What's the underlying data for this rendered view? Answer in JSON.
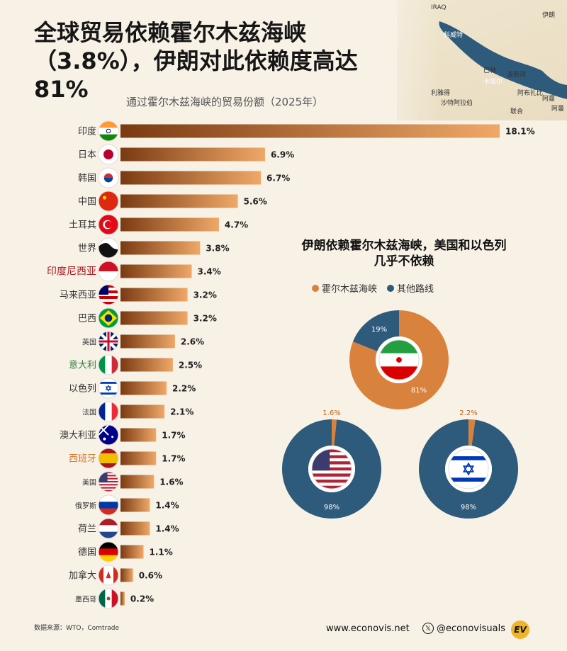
{
  "title": "全球贸易依赖霍尔木兹海峡（3.8%），伊朗对此依赖度高达81%",
  "map": {
    "labels": [
      "IRAQ",
      "伊朗",
      "科威特",
      "巴林",
      "波斯湾",
      "卡塔尔",
      "利雅得",
      "沙特阿拉伯",
      "阿布扎比",
      "阿曼",
      "联合",
      "阿曼"
    ]
  },
  "colors": {
    "bar_dark": "#7a3a12",
    "bar_light": "#f0a868",
    "strait": "#d9823d",
    "other": "#2e5a7c"
  },
  "chart_data": [
    {
      "type": "bar",
      "title": "通过霍尔木兹海峡的贸易份额（2025年）",
      "categories": [
        "印度",
        "日本",
        "韩国",
        "中国",
        "土耳其",
        "世界",
        "印度尼西亚",
        "马来西亚",
        "巴西",
        "英国",
        "意大利",
        "以色列",
        "法国",
        "澳大利亚",
        "西班牙",
        "美国",
        "俄罗斯",
        "荷兰",
        "德国",
        "加拿大",
        "墨西哥"
      ],
      "values": [
        18.1,
        6.9,
        6.7,
        5.6,
        4.7,
        3.8,
        3.4,
        3.2,
        3.2,
        2.6,
        2.5,
        2.2,
        2.1,
        1.7,
        1.7,
        1.6,
        1.4,
        1.4,
        1.1,
        0.6,
        0.2
      ],
      "labels": [
        "18.1%",
        "6.9%",
        "6.7%",
        "5.6%",
        "4.7%",
        "3.8%",
        "3.4%",
        "3.2%",
        "3.2%",
        "2.6%",
        "2.5%",
        "2.2%",
        "2.1%",
        "1.7%",
        "1.7%",
        "1.6%",
        "1.4%",
        "1.4%",
        "1.1%",
        "0.6%",
        "0.2%"
      ],
      "flags": [
        "india-flag-icon",
        "japan-flag-icon",
        "korea-flag-icon",
        "china-flag-icon",
        "turkey-flag-icon",
        "world-globe-icon",
        "indonesia-flag-icon",
        "malaysia-flag-icon",
        "brazil-flag-icon",
        "uk-flag-icon",
        "italy-flag-icon",
        "israel-flag-icon",
        "france-flag-icon",
        "australia-flag-icon",
        "spain-flag-icon",
        "usa-flag-icon",
        "russia-flag-icon",
        "netherlands-flag-icon",
        "germany-flag-icon",
        "canada-flag-icon",
        "mexico-flag-icon"
      ],
      "xlim": [
        0,
        18.1
      ]
    },
    {
      "type": "pie",
      "title": "伊朗依赖霍尔木兹海峡，美国和以色列几乎不依赖",
      "legend": [
        "霍尔木兹海峡",
        "其他路线"
      ],
      "charts": [
        {
          "flag": "iran-flag-icon",
          "strait": 81,
          "other": 19,
          "strait_label": "81%",
          "other_label": "19%"
        },
        {
          "flag": "usa-flag-icon",
          "strait": 1.6,
          "other": 98,
          "strait_label": "1.6%",
          "other_label": "98%"
        },
        {
          "flag": "israel-flag-icon",
          "strait": 2.2,
          "other": 98,
          "strait_label": "2.2%",
          "other_label": "98%"
        }
      ]
    }
  ],
  "footer": {
    "source": "数据来源：WTO，Comtrade",
    "website": "www.econovis.net",
    "social": "@econovisuals",
    "logo": "EV"
  }
}
